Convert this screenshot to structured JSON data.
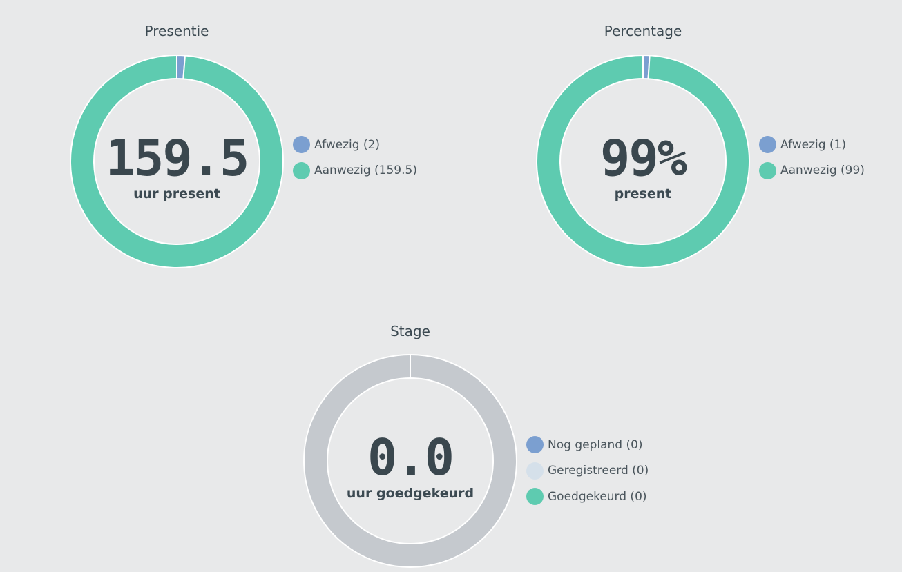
{
  "chart_data": [
    {
      "type": "pie",
      "title": "Presentie",
      "center_value": "159.5",
      "center_label": "uur present",
      "slices": [
        {
          "label": "Afwezig (2)",
          "name": "Afwezig",
          "value": 2,
          "color": "#7b9fd0"
        },
        {
          "label": "Aanwezig (159.5)",
          "name": "Aanwezig",
          "value": 159.5,
          "color": "#5ecbb0"
        }
      ],
      "empty_color": "#c5c9ce"
    },
    {
      "type": "pie",
      "title": "Percentage",
      "center_value": "99%",
      "center_label": "present",
      "slices": [
        {
          "label": "Afwezig (1)",
          "name": "Afwezig",
          "value": 1,
          "color": "#7b9fd0"
        },
        {
          "label": "Aanwezig (99)",
          "name": "Aanwezig",
          "value": 99,
          "color": "#5ecbb0"
        }
      ],
      "empty_color": "#c5c9ce"
    },
    {
      "type": "pie",
      "title": "Stage",
      "center_value": "0.0",
      "center_label": "uur goedgekeurd",
      "slices": [
        {
          "label": "Nog gepland (0)",
          "name": "Nog gepland",
          "value": 0,
          "color": "#7b9fd0"
        },
        {
          "label": "Geregistreerd (0)",
          "name": "Geregistreerd",
          "value": 0,
          "color": "#d5e0ea"
        },
        {
          "label": "Goedgekeurd (0)",
          "name": "Goedgekeurd",
          "value": 0,
          "color": "#5ecbb0"
        }
      ],
      "empty_color": "#c5c9ce"
    }
  ]
}
